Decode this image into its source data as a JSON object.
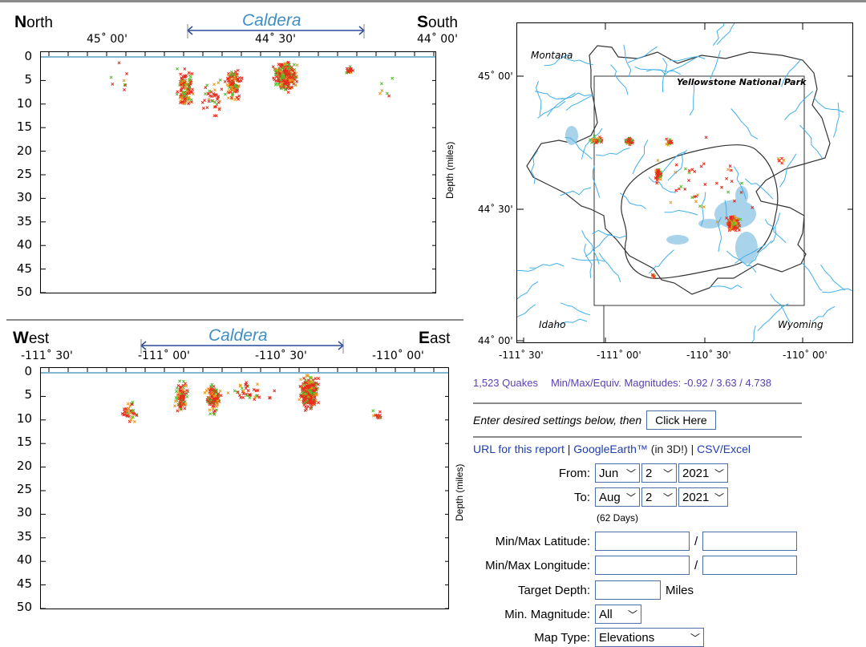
{
  "cross_sections": {
    "north_south": {
      "left_letter": "N",
      "left_rest": "orth",
      "right_letter": "S",
      "right_rest": "outh",
      "caldera": "Caldera",
      "top_ticks": [
        "45˚ 00'",
        "44˚ 30'",
        "44˚ 00'"
      ],
      "depth_ticks": [
        "0",
        "5",
        "10",
        "15",
        "20",
        "25",
        "30",
        "35",
        "40",
        "45",
        "50"
      ],
      "yaxis": "Depth (miles)"
    },
    "west_east": {
      "left_letter": "W",
      "left_rest": "est",
      "right_letter": "E",
      "right_rest": "ast",
      "caldera": "Caldera",
      "top_ticks": [
        "-111˚ 30'",
        "-111˚ 00'",
        "-110˚ 30'",
        "-110˚ 00'"
      ],
      "depth_ticks": [
        "0",
        "5",
        "10",
        "15",
        "20",
        "25",
        "30",
        "35",
        "40",
        "45",
        "50"
      ],
      "yaxis": "Depth (miles)"
    }
  },
  "map": {
    "lat_ticks": [
      "45˚ 00'",
      "44˚ 30'",
      "44˚ 00'"
    ],
    "lon_ticks": [
      "-111˚ 30'",
      "-111˚ 00'",
      "-110˚ 30'",
      "-110˚ 00'"
    ],
    "labels": {
      "montana": "Montana",
      "park": "Yellowstone National Park",
      "idaho": "Idaho",
      "wyoming": "Wyoming"
    }
  },
  "stats": {
    "quakes": "1,523 Quakes",
    "magnitudes": "Min/Max/Equiv. Magnitudes: -0.92 / 3.63 / 4.738"
  },
  "form": {
    "instructions": "Enter desired settings below, then",
    "click_here": "Click Here",
    "url_link": "URL for this report",
    "sep1": " | ",
    "google_earth": "GoogleEarth™",
    "in3d": " (in 3D!) ",
    "sep2": "| ",
    "csv": "CSV/Excel",
    "from_label": "From:",
    "from": {
      "month": "Jun",
      "day": "2",
      "year": "2021"
    },
    "to_label": "To:",
    "to": {
      "month": "Aug",
      "day": "2",
      "year": "2021"
    },
    "days": "(62 Days)",
    "lat_label": "Min/Max Latitude:",
    "lon_label": "Min/Max Longitude:",
    "slash": "/",
    "depth_label": "Target Depth:",
    "miles": "Miles",
    "minmag_label": "Min. Magnitude:",
    "minmag": "All",
    "maptype_label": "Map Type:",
    "maptype": "Elevations"
  },
  "colors": {
    "caldera_blue": "#3d8fc4",
    "quake_red": "#e8291c",
    "quake_green": "#4fbf2a",
    "quake_orange": "#e89a1c",
    "river_blue": "#40b0ea",
    "link_blue": "#1d3fae",
    "stat_purple": "#5a3fb3"
  }
}
